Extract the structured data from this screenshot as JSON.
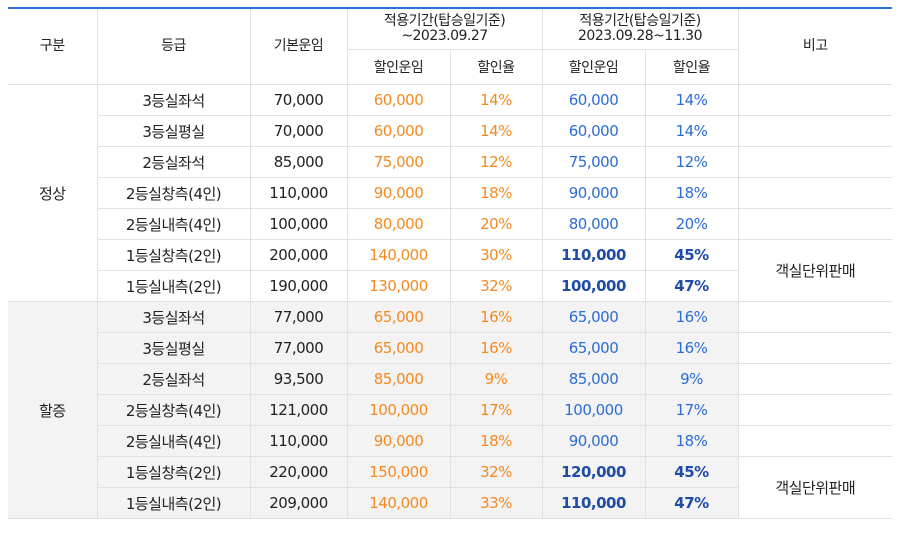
{
  "header": {
    "col_group": "구분",
    "col_grade": "등급",
    "col_base": "기본운임",
    "period1_title_line1": "적용기간(탑승일기준)",
    "period1_title_line2": "~2023.09.27",
    "period2_title_line1": "적용기간(탑승일기준)",
    "period2_title_line2": "2023.09.28~11.30",
    "col_remark": "비고",
    "sub_fare": "할인운임",
    "sub_rate": "할인율"
  },
  "colors": {
    "period1": "#f48a1f",
    "period2": "#2c6cd8",
    "period2_strong": "#1f4ca6",
    "header_border": "#2f6fd8"
  },
  "groups": [
    {
      "name": "정상",
      "remark": "객실단위판매",
      "rows": [
        {
          "grade": "3등실좌석",
          "base": "70,000",
          "p1_fare": "60,000",
          "p1_rate": "14%",
          "p2_fare": "60,000",
          "p2_rate": "14%"
        },
        {
          "grade": "3등실평실",
          "base": "70,000",
          "p1_fare": "60,000",
          "p1_rate": "14%",
          "p2_fare": "60,000",
          "p2_rate": "14%"
        },
        {
          "grade": "2등실좌석",
          "base": "85,000",
          "p1_fare": "75,000",
          "p1_rate": "12%",
          "p2_fare": "75,000",
          "p2_rate": "12%"
        },
        {
          "grade": "2등실창측(4인)",
          "base": "110,000",
          "p1_fare": "90,000",
          "p1_rate": "18%",
          "p2_fare": "90,000",
          "p2_rate": "18%"
        },
        {
          "grade": "2등실내측(4인)",
          "base": "100,000",
          "p1_fare": "80,000",
          "p1_rate": "20%",
          "p2_fare": "80,000",
          "p2_rate": "20%"
        },
        {
          "grade": "1등실창측(2인)",
          "base": "200,000",
          "p1_fare": "140,000",
          "p1_rate": "30%",
          "p2_fare": "110,000",
          "p2_rate": "45%"
        },
        {
          "grade": "1등실내측(2인)",
          "base": "190,000",
          "p1_fare": "130,000",
          "p1_rate": "32%",
          "p2_fare": "100,000",
          "p2_rate": "47%"
        }
      ]
    },
    {
      "name": "할증",
      "remark": "객실단위판매",
      "rows": [
        {
          "grade": "3등실좌석",
          "base": "77,000",
          "p1_fare": "65,000",
          "p1_rate": "16%",
          "p2_fare": "65,000",
          "p2_rate": "16%"
        },
        {
          "grade": "3등실평실",
          "base": "77,000",
          "p1_fare": "65,000",
          "p1_rate": "16%",
          "p2_fare": "65,000",
          "p2_rate": "16%"
        },
        {
          "grade": "2등실좌석",
          "base": "93,500",
          "p1_fare": "85,000",
          "p1_rate": "9%",
          "p2_fare": "85,000",
          "p2_rate": "9%"
        },
        {
          "grade": "2등실창측(4인)",
          "base": "121,000",
          "p1_fare": "100,000",
          "p1_rate": "17%",
          "p2_fare": "100,000",
          "p2_rate": "17%"
        },
        {
          "grade": "2등실내측(4인)",
          "base": "110,000",
          "p1_fare": "90,000",
          "p1_rate": "18%",
          "p2_fare": "90,000",
          "p2_rate": "18%"
        },
        {
          "grade": "1등실창측(2인)",
          "base": "220,000",
          "p1_fare": "150,000",
          "p1_rate": "32%",
          "p2_fare": "120,000",
          "p2_rate": "45%"
        },
        {
          "grade": "1등실내측(2인)",
          "base": "209,000",
          "p1_fare": "140,000",
          "p1_rate": "33%",
          "p2_fare": "110,000",
          "p2_rate": "47%"
        }
      ]
    }
  ]
}
